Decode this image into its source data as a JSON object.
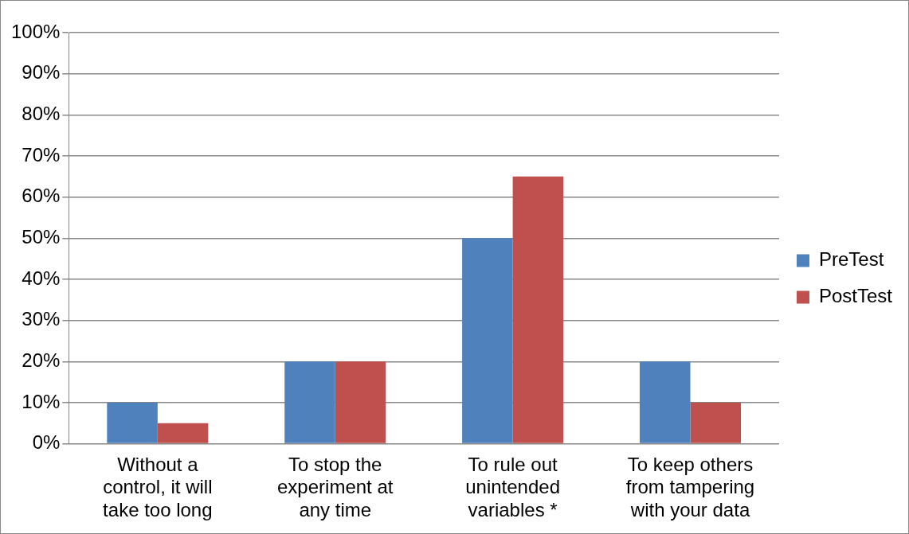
{
  "chart_data": {
    "type": "bar",
    "categories": [
      "Without a control, it will take too long",
      "To stop the experiment at any time",
      "To rule out unintended variables *",
      "To keep others from tampering with your data"
    ],
    "series": [
      {
        "name": "PreTest",
        "color": "#4f81bd",
        "values": [
          10,
          20,
          50,
          20
        ]
      },
      {
        "name": "PostTest",
        "color": "#c0504d",
        "values": [
          5,
          20,
          65,
          10
        ]
      }
    ],
    "ylim": [
      0,
      100
    ],
    "yticks": [
      {
        "value": 0,
        "label": "0%"
      },
      {
        "value": 10,
        "label": "10%"
      },
      {
        "value": 20,
        "label": "20%"
      },
      {
        "value": 30,
        "label": "30%"
      },
      {
        "value": 40,
        "label": "40%"
      },
      {
        "value": 50,
        "label": "50%"
      },
      {
        "value": 60,
        "label": "60%"
      },
      {
        "value": 70,
        "label": "70%"
      },
      {
        "value": 80,
        "label": "80%"
      },
      {
        "value": 90,
        "label": "90%"
      },
      {
        "value": 100,
        "label": "100%"
      }
    ],
    "grid": "y",
    "legend": "right"
  }
}
